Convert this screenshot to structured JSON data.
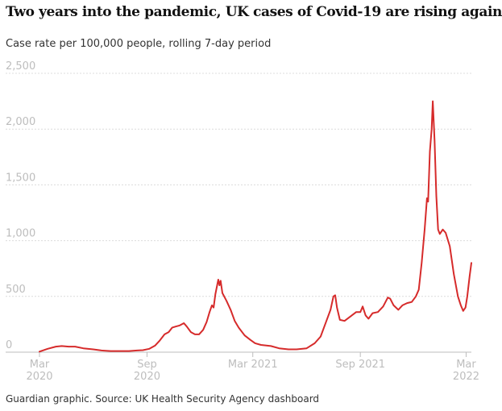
{
  "header": {
    "title": "Two years into the pandemic, UK cases of Covid-19 are rising again",
    "subtitle": "Case rate per 100,000 people, rolling 7-day period"
  },
  "footer": {
    "source": "Guardian graphic. Source: UK Health Security Agency dashboard"
  },
  "colors": {
    "line": "#d62b2b",
    "grid": "#dcdcdc",
    "tick_text": "#bdbdbd",
    "text": "#121212"
  },
  "chart_data": {
    "type": "line",
    "title": "Two years into the pandemic, UK cases of Covid-19 are rising again",
    "subtitle": "Case rate per 100,000 people, rolling 7-day period",
    "ylim": [
      0,
      2500
    ],
    "xlim": [
      "2020-03-01",
      "2022-03-10"
    ],
    "grid": "horizontal dashed",
    "y_ticks": [
      {
        "value": 0,
        "label": "0"
      },
      {
        "value": 500,
        "label": "500"
      },
      {
        "value": 1000,
        "label": "1,000"
      },
      {
        "value": 1500,
        "label": "1,500"
      },
      {
        "value": 2000,
        "label": "2,000"
      },
      {
        "value": 2500,
        "label": "2,500"
      }
    ],
    "x_ticks": [
      {
        "date": "2020-03-01",
        "lines": [
          "Mar",
          "2020"
        ]
      },
      {
        "date": "2020-09-01",
        "lines": [
          "Sep",
          "2020"
        ]
      },
      {
        "date": "2021-03-01",
        "lines": [
          "Mar 2021"
        ]
      },
      {
        "date": "2021-09-01",
        "lines": [
          "Sep 2021"
        ]
      },
      {
        "date": "2022-03-01",
        "lines": [
          "Mar",
          "2022"
        ]
      }
    ],
    "series": [
      {
        "points": [
          [
            "2020-03-01",
            5
          ],
          [
            "2020-03-15",
            30
          ],
          [
            "2020-03-29",
            50
          ],
          [
            "2020-04-08",
            55
          ],
          [
            "2020-04-20",
            50
          ],
          [
            "2020-05-01",
            50
          ],
          [
            "2020-05-15",
            35
          ],
          [
            "2020-06-01",
            25
          ],
          [
            "2020-06-15",
            15
          ],
          [
            "2020-07-01",
            10
          ],
          [
            "2020-07-15",
            10
          ],
          [
            "2020-08-01",
            10
          ],
          [
            "2020-08-15",
            15
          ],
          [
            "2020-08-25",
            18
          ],
          [
            "2020-09-05",
            30
          ],
          [
            "2020-09-15",
            60
          ],
          [
            "2020-09-22",
            100
          ],
          [
            "2020-10-01",
            160
          ],
          [
            "2020-10-08",
            180
          ],
          [
            "2020-10-14",
            220
          ],
          [
            "2020-10-20",
            230
          ],
          [
            "2020-10-27",
            240
          ],
          [
            "2020-11-03",
            260
          ],
          [
            "2020-11-08",
            230
          ],
          [
            "2020-11-15",
            180
          ],
          [
            "2020-11-22",
            160
          ],
          [
            "2020-11-29",
            160
          ],
          [
            "2020-12-06",
            200
          ],
          [
            "2020-12-12",
            270
          ],
          [
            "2020-12-17",
            360
          ],
          [
            "2020-12-21",
            420
          ],
          [
            "2020-12-24",
            400
          ],
          [
            "2020-12-27",
            520
          ],
          [
            "2020-12-30",
            600
          ],
          [
            "2021-01-01",
            650
          ],
          [
            "2021-01-03",
            600
          ],
          [
            "2021-01-05",
            640
          ],
          [
            "2021-01-08",
            530
          ],
          [
            "2021-01-15",
            460
          ],
          [
            "2021-01-22",
            380
          ],
          [
            "2021-01-29",
            280
          ],
          [
            "2021-02-05",
            220
          ],
          [
            "2021-02-15",
            150
          ],
          [
            "2021-02-25",
            110
          ],
          [
            "2021-03-05",
            80
          ],
          [
            "2021-03-15",
            65
          ],
          [
            "2021-04-01",
            55
          ],
          [
            "2021-04-15",
            35
          ],
          [
            "2021-05-01",
            25
          ],
          [
            "2021-05-15",
            25
          ],
          [
            "2021-06-01",
            35
          ],
          [
            "2021-06-15",
            80
          ],
          [
            "2021-06-25",
            140
          ],
          [
            "2021-07-05",
            280
          ],
          [
            "2021-07-12",
            380
          ],
          [
            "2021-07-17",
            500
          ],
          [
            "2021-07-20",
            510
          ],
          [
            "2021-07-23",
            400
          ],
          [
            "2021-07-28",
            290
          ],
          [
            "2021-08-05",
            280
          ],
          [
            "2021-08-15",
            320
          ],
          [
            "2021-08-25",
            360
          ],
          [
            "2021-09-01",
            360
          ],
          [
            "2021-09-05",
            410
          ],
          [
            "2021-09-10",
            330
          ],
          [
            "2021-09-15",
            300
          ],
          [
            "2021-09-22",
            350
          ],
          [
            "2021-10-01",
            360
          ],
          [
            "2021-10-10",
            410
          ],
          [
            "2021-10-18",
            490
          ],
          [
            "2021-10-22",
            480
          ],
          [
            "2021-10-28",
            420
          ],
          [
            "2021-11-05",
            380
          ],
          [
            "2021-11-12",
            420
          ],
          [
            "2021-11-20",
            440
          ],
          [
            "2021-11-28",
            450
          ],
          [
            "2021-12-05",
            500
          ],
          [
            "2021-12-10",
            560
          ],
          [
            "2021-12-15",
            800
          ],
          [
            "2021-12-20",
            1100
          ],
          [
            "2021-12-24",
            1380
          ],
          [
            "2021-12-26",
            1350
          ],
          [
            "2021-12-29",
            1800
          ],
          [
            "2022-01-01",
            2000
          ],
          [
            "2022-01-03",
            2250
          ],
          [
            "2022-01-06",
            1900
          ],
          [
            "2022-01-09",
            1400
          ],
          [
            "2022-01-12",
            1100
          ],
          [
            "2022-01-15",
            1060
          ],
          [
            "2022-01-20",
            1100
          ],
          [
            "2022-01-25",
            1070
          ],
          [
            "2022-02-01",
            950
          ],
          [
            "2022-02-08",
            700
          ],
          [
            "2022-02-15",
            500
          ],
          [
            "2022-02-20",
            420
          ],
          [
            "2022-02-24",
            370
          ],
          [
            "2022-02-28",
            400
          ],
          [
            "2022-03-03",
            500
          ],
          [
            "2022-03-07",
            680
          ],
          [
            "2022-03-10",
            800
          ]
        ]
      }
    ]
  }
}
